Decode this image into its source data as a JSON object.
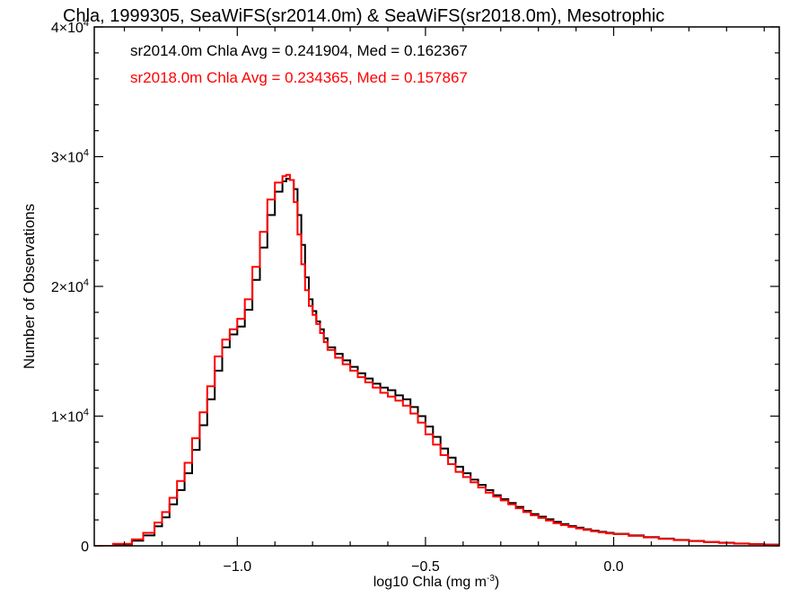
{
  "chart_data": {
    "type": "line",
    "title": "Chla, 1999305, SeaWiFS(sr2014.0m) & SeaWiFS(sr2018.0m), Mesotrophic",
    "xlabel": "log10 Chla (mg m",
    "xlabel_sup": "-3",
    "xlabel_close": ")",
    "ylabel": "Number of Observations",
    "xlim": [
      -1.38,
      0.44
    ],
    "ylim": [
      0,
      40000
    ],
    "xticks": [
      {
        "value": -1.0,
        "label": "−1.0"
      },
      {
        "value": -0.5,
        "label": "−0.5"
      },
      {
        "value": 0.0,
        "label": "0.0"
      }
    ],
    "yticks": [
      {
        "value": 0,
        "mant": "0",
        "exp": ""
      },
      {
        "value": 10000,
        "mant": "1×10",
        "exp": "4"
      },
      {
        "value": 20000,
        "mant": "2×10",
        "exp": "4"
      },
      {
        "value": 30000,
        "mant": "3×10",
        "exp": "4"
      },
      {
        "value": 40000,
        "mant": "4×10",
        "exp": "4"
      }
    ],
    "grid": false,
    "step": true,
    "annotations": [
      {
        "text": "sr2014.0m Chla Avg = 0.241904, Med = 0.162367",
        "color": "#000000"
      },
      {
        "text": "sr2018.0m Chla Avg = 0.234365, Med = 0.157867",
        "color": "#ff0000"
      }
    ],
    "series": [
      {
        "color": "#000000",
        "x": [
          -1.38,
          -1.33,
          -1.28,
          -1.25,
          -1.22,
          -1.2,
          -1.18,
          -1.16,
          -1.14,
          -1.12,
          -1.1,
          -1.08,
          -1.06,
          -1.04,
          -1.02,
          -1.0,
          -0.98,
          -0.96,
          -0.94,
          -0.92,
          -0.9,
          -0.88,
          -0.87,
          -0.86,
          -0.85,
          -0.84,
          -0.83,
          -0.82,
          -0.81,
          -0.8,
          -0.79,
          -0.78,
          -0.77,
          -0.76,
          -0.74,
          -0.72,
          -0.7,
          -0.68,
          -0.66,
          -0.64,
          -0.62,
          -0.6,
          -0.58,
          -0.56,
          -0.54,
          -0.52,
          -0.5,
          -0.48,
          -0.46,
          -0.44,
          -0.42,
          -0.4,
          -0.38,
          -0.36,
          -0.34,
          -0.32,
          -0.3,
          -0.28,
          -0.26,
          -0.24,
          -0.22,
          -0.2,
          -0.18,
          -0.16,
          -0.14,
          -0.12,
          -0.1,
          -0.08,
          -0.06,
          -0.04,
          -0.02,
          0.0,
          0.04,
          0.08,
          0.12,
          0.16,
          0.2,
          0.24,
          0.28,
          0.32,
          0.36,
          0.4,
          0.44
        ],
        "values": [
          0,
          100,
          400,
          800,
          1500,
          2200,
          3200,
          4300,
          5600,
          7400,
          9300,
          11300,
          13500,
          15300,
          16300,
          16900,
          18200,
          20500,
          23000,
          25500,
          27300,
          28100,
          28300,
          28200,
          27500,
          25500,
          23200,
          20700,
          19000,
          18100,
          17300,
          16700,
          16000,
          15300,
          14800,
          14300,
          13800,
          13300,
          12900,
          12500,
          12200,
          12000,
          11600,
          11300,
          10700,
          10000,
          9200,
          8400,
          7500,
          6800,
          6100,
          5600,
          5100,
          4700,
          4300,
          3900,
          3600,
          3300,
          3000,
          2700,
          2450,
          2250,
          2050,
          1850,
          1680,
          1530,
          1400,
          1280,
          1170,
          1080,
          1000,
          930,
          800,
          680,
          560,
          460,
          380,
          300,
          240,
          180,
          140,
          100,
          60
        ]
      },
      {
        "color": "#ff0000",
        "x": [
          -1.38,
          -1.33,
          -1.28,
          -1.25,
          -1.22,
          -1.2,
          -1.18,
          -1.16,
          -1.14,
          -1.12,
          -1.1,
          -1.08,
          -1.06,
          -1.04,
          -1.02,
          -1.0,
          -0.98,
          -0.96,
          -0.94,
          -0.92,
          -0.9,
          -0.88,
          -0.87,
          -0.86,
          -0.85,
          -0.84,
          -0.83,
          -0.82,
          -0.81,
          -0.8,
          -0.79,
          -0.78,
          -0.77,
          -0.76,
          -0.74,
          -0.72,
          -0.7,
          -0.68,
          -0.66,
          -0.64,
          -0.62,
          -0.6,
          -0.58,
          -0.56,
          -0.54,
          -0.52,
          -0.5,
          -0.48,
          -0.46,
          -0.44,
          -0.42,
          -0.4,
          -0.38,
          -0.36,
          -0.34,
          -0.32,
          -0.3,
          -0.28,
          -0.26,
          -0.24,
          -0.22,
          -0.2,
          -0.18,
          -0.16,
          -0.14,
          -0.12,
          -0.1,
          -0.08,
          -0.06,
          -0.04,
          -0.02,
          0.0,
          0.04,
          0.08,
          0.12,
          0.16,
          0.2,
          0.24,
          0.28,
          0.32,
          0.36,
          0.4,
          0.44
        ],
        "values": [
          0,
          150,
          500,
          1000,
          1800,
          2600,
          3700,
          5000,
          6400,
          8300,
          10300,
          12300,
          14600,
          15900,
          16700,
          17500,
          19000,
          21500,
          24200,
          26700,
          28000,
          28500,
          28600,
          28200,
          26500,
          24000,
          21700,
          19700,
          18500,
          17800,
          17100,
          16400,
          15700,
          15100,
          14500,
          14000,
          13500,
          13000,
          12600,
          12200,
          11800,
          11500,
          11200,
          10800,
          10200,
          9500,
          8600,
          7800,
          7000,
          6300,
          5700,
          5300,
          4900,
          4500,
          4100,
          3800,
          3500,
          3200,
          2900,
          2600,
          2350,
          2150,
          1950,
          1750,
          1600,
          1460,
          1340,
          1230,
          1130,
          1040,
          960,
          900,
          770,
          650,
          540,
          440,
          360,
          290,
          230,
          170,
          130,
          90,
          50
        ]
      }
    ]
  }
}
